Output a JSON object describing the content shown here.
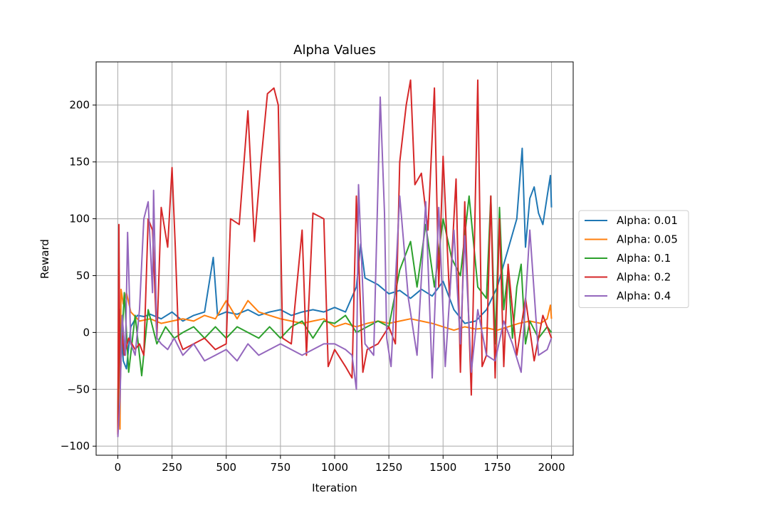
{
  "chart_data": {
    "type": "line",
    "title": "Alpha Values",
    "xlabel": "Iteration",
    "ylabel": "Reward",
    "xlim": [
      -100,
      2100
    ],
    "ylim": [
      -108,
      238
    ],
    "xticks": [
      0,
      250,
      500,
      750,
      1000,
      1250,
      1500,
      1750,
      2000
    ],
    "yticks": [
      -100,
      -50,
      0,
      50,
      100,
      150,
      200
    ],
    "grid": true,
    "legend": "center-right, outside",
    "series": [
      {
        "name": "Alpha: 0.01",
        "color": "#1f77b4",
        "points": [
          [
            0,
            -88
          ],
          [
            5,
            -30
          ],
          [
            12,
            20
          ],
          [
            25,
            -25
          ],
          [
            40,
            -32
          ],
          [
            60,
            5
          ],
          [
            90,
            15
          ],
          [
            120,
            14
          ],
          [
            150,
            16
          ],
          [
            200,
            12
          ],
          [
            250,
            18
          ],
          [
            300,
            10
          ],
          [
            350,
            15
          ],
          [
            400,
            18
          ],
          [
            440,
            66
          ],
          [
            460,
            15
          ],
          [
            500,
            18
          ],
          [
            550,
            16
          ],
          [
            600,
            20
          ],
          [
            650,
            15
          ],
          [
            700,
            18
          ],
          [
            750,
            20
          ],
          [
            800,
            15
          ],
          [
            850,
            18
          ],
          [
            900,
            20
          ],
          [
            950,
            18
          ],
          [
            1000,
            22
          ],
          [
            1050,
            18
          ],
          [
            1100,
            40
          ],
          [
            1120,
            78
          ],
          [
            1140,
            48
          ],
          [
            1200,
            42
          ],
          [
            1250,
            34
          ],
          [
            1300,
            37
          ],
          [
            1350,
            30
          ],
          [
            1400,
            38
          ],
          [
            1450,
            32
          ],
          [
            1500,
            45
          ],
          [
            1550,
            20
          ],
          [
            1600,
            8
          ],
          [
            1650,
            10
          ],
          [
            1700,
            20
          ],
          [
            1750,
            40
          ],
          [
            1780,
            60
          ],
          [
            1810,
            80
          ],
          [
            1840,
            100
          ],
          [
            1865,
            162
          ],
          [
            1880,
            75
          ],
          [
            1900,
            118
          ],
          [
            1920,
            128
          ],
          [
            1940,
            105
          ],
          [
            1960,
            95
          ],
          [
            1980,
            120
          ],
          [
            1995,
            138
          ],
          [
            2000,
            110
          ]
        ]
      },
      {
        "name": "Alpha: 0.05",
        "color": "#ff7f0e",
        "points": [
          [
            0,
            -90
          ],
          [
            4,
            55
          ],
          [
            10,
            -85
          ],
          [
            15,
            38
          ],
          [
            25,
            25
          ],
          [
            40,
            35
          ],
          [
            60,
            18
          ],
          [
            100,
            10
          ],
          [
            150,
            12
          ],
          [
            200,
            8
          ],
          [
            250,
            10
          ],
          [
            300,
            12
          ],
          [
            350,
            10
          ],
          [
            400,
            15
          ],
          [
            450,
            12
          ],
          [
            500,
            28
          ],
          [
            550,
            12
          ],
          [
            600,
            28
          ],
          [
            650,
            18
          ],
          [
            700,
            15
          ],
          [
            750,
            12
          ],
          [
            800,
            10
          ],
          [
            850,
            8
          ],
          [
            900,
            10
          ],
          [
            950,
            12
          ],
          [
            1000,
            5
          ],
          [
            1050,
            8
          ],
          [
            1100,
            5
          ],
          [
            1150,
            8
          ],
          [
            1200,
            10
          ],
          [
            1250,
            8
          ],
          [
            1300,
            10
          ],
          [
            1350,
            12
          ],
          [
            1400,
            10
          ],
          [
            1450,
            8
          ],
          [
            1500,
            5
          ],
          [
            1550,
            2
          ],
          [
            1600,
            5
          ],
          [
            1650,
            3
          ],
          [
            1700,
            4
          ],
          [
            1750,
            2
          ],
          [
            1800,
            5
          ],
          [
            1850,
            8
          ],
          [
            1900,
            10
          ],
          [
            1950,
            8
          ],
          [
            1980,
            12
          ],
          [
            1995,
            24
          ],
          [
            2000,
            12
          ]
        ]
      },
      {
        "name": "Alpha: 0.1",
        "color": "#2ca02c",
        "points": [
          [
            0,
            -85
          ],
          [
            5,
            30
          ],
          [
            15,
            -20
          ],
          [
            30,
            35
          ],
          [
            50,
            -35
          ],
          [
            80,
            15
          ],
          [
            110,
            -38
          ],
          [
            140,
            20
          ],
          [
            180,
            -10
          ],
          [
            220,
            5
          ],
          [
            260,
            -5
          ],
          [
            300,
            0
          ],
          [
            350,
            5
          ],
          [
            400,
            -5
          ],
          [
            450,
            5
          ],
          [
            500,
            -5
          ],
          [
            550,
            5
          ],
          [
            600,
            0
          ],
          [
            650,
            -5
          ],
          [
            700,
            5
          ],
          [
            750,
            -5
          ],
          [
            800,
            5
          ],
          [
            850,
            10
          ],
          [
            900,
            -5
          ],
          [
            950,
            10
          ],
          [
            1000,
            8
          ],
          [
            1050,
            15
          ],
          [
            1100,
            0
          ],
          [
            1150,
            5
          ],
          [
            1200,
            10
          ],
          [
            1250,
            5
          ],
          [
            1300,
            55
          ],
          [
            1350,
            80
          ],
          [
            1380,
            40
          ],
          [
            1420,
            95
          ],
          [
            1460,
            40
          ],
          [
            1500,
            100
          ],
          [
            1540,
            65
          ],
          [
            1580,
            50
          ],
          [
            1620,
            120
          ],
          [
            1660,
            40
          ],
          [
            1700,
            30
          ],
          [
            1720,
            120
          ],
          [
            1740,
            -10
          ],
          [
            1760,
            110
          ],
          [
            1780,
            20
          ],
          [
            1800,
            55
          ],
          [
            1820,
            -5
          ],
          [
            1840,
            40
          ],
          [
            1860,
            60
          ],
          [
            1880,
            -10
          ],
          [
            1900,
            10
          ],
          [
            1940,
            -5
          ],
          [
            1980,
            5
          ],
          [
            2000,
            0
          ]
        ]
      },
      {
        "name": "Alpha: 0.2",
        "color": "#d62728",
        "points": [
          [
            0,
            -90
          ],
          [
            5,
            95
          ],
          [
            10,
            -50
          ],
          [
            20,
            0
          ],
          [
            30,
            -20
          ],
          [
            50,
            -5
          ],
          [
            80,
            -15
          ],
          [
            100,
            -10
          ],
          [
            120,
            -20
          ],
          [
            140,
            100
          ],
          [
            160,
            90
          ],
          [
            180,
            -5
          ],
          [
            200,
            110
          ],
          [
            230,
            75
          ],
          [
            250,
            145
          ],
          [
            265,
            75
          ],
          [
            280,
            -5
          ],
          [
            300,
            -15
          ],
          [
            350,
            -10
          ],
          [
            400,
            -5
          ],
          [
            450,
            -15
          ],
          [
            500,
            -10
          ],
          [
            520,
            100
          ],
          [
            560,
            95
          ],
          [
            600,
            195
          ],
          [
            630,
            80
          ],
          [
            660,
            150
          ],
          [
            690,
            210
          ],
          [
            720,
            215
          ],
          [
            740,
            200
          ],
          [
            760,
            -5
          ],
          [
            800,
            -10
          ],
          [
            850,
            90
          ],
          [
            870,
            -20
          ],
          [
            900,
            105
          ],
          [
            950,
            100
          ],
          [
            970,
            -30
          ],
          [
            1000,
            -15
          ],
          [
            1050,
            -30
          ],
          [
            1080,
            -40
          ],
          [
            1100,
            120
          ],
          [
            1130,
            -35
          ],
          [
            1150,
            -15
          ],
          [
            1200,
            -10
          ],
          [
            1250,
            5
          ],
          [
            1280,
            -10
          ],
          [
            1300,
            150
          ],
          [
            1330,
            200
          ],
          [
            1350,
            222
          ],
          [
            1370,
            130
          ],
          [
            1400,
            140
          ],
          [
            1430,
            90
          ],
          [
            1460,
            215
          ],
          [
            1480,
            40
          ],
          [
            1500,
            155
          ],
          [
            1530,
            30
          ],
          [
            1560,
            135
          ],
          [
            1580,
            -35
          ],
          [
            1600,
            115
          ],
          [
            1630,
            -55
          ],
          [
            1660,
            222
          ],
          [
            1680,
            -30
          ],
          [
            1700,
            -20
          ],
          [
            1720,
            120
          ],
          [
            1740,
            -40
          ],
          [
            1760,
            100
          ],
          [
            1780,
            -30
          ],
          [
            1800,
            60
          ],
          [
            1840,
            -20
          ],
          [
            1880,
            30
          ],
          [
            1920,
            -25
          ],
          [
            1960,
            15
          ],
          [
            2000,
            -5
          ]
        ]
      },
      {
        "name": "Alpha: 0.4",
        "color": "#9467bd",
        "points": [
          [
            0,
            -92
          ],
          [
            10,
            -60
          ],
          [
            20,
            15
          ],
          [
            35,
            -20
          ],
          [
            45,
            88
          ],
          [
            60,
            -10
          ],
          [
            80,
            -20
          ],
          [
            100,
            20
          ],
          [
            120,
            100
          ],
          [
            140,
            115
          ],
          [
            160,
            35
          ],
          [
            165,
            125
          ],
          [
            180,
            -5
          ],
          [
            200,
            -10
          ],
          [
            230,
            -15
          ],
          [
            260,
            -5
          ],
          [
            300,
            -20
          ],
          [
            350,
            -10
          ],
          [
            400,
            -25
          ],
          [
            450,
            -20
          ],
          [
            500,
            -15
          ],
          [
            550,
            -25
          ],
          [
            600,
            -10
          ],
          [
            650,
            -20
          ],
          [
            700,
            -15
          ],
          [
            750,
            -10
          ],
          [
            800,
            -15
          ],
          [
            850,
            -20
          ],
          [
            900,
            -15
          ],
          [
            950,
            -10
          ],
          [
            1000,
            -10
          ],
          [
            1050,
            -15
          ],
          [
            1080,
            -20
          ],
          [
            1100,
            -50
          ],
          [
            1110,
            130
          ],
          [
            1140,
            -10
          ],
          [
            1180,
            -20
          ],
          [
            1210,
            207
          ],
          [
            1230,
            105
          ],
          [
            1240,
            -5
          ],
          [
            1260,
            -30
          ],
          [
            1300,
            120
          ],
          [
            1340,
            30
          ],
          [
            1380,
            -20
          ],
          [
            1420,
            115
          ],
          [
            1450,
            -40
          ],
          [
            1480,
            110
          ],
          [
            1510,
            -30
          ],
          [
            1550,
            90
          ],
          [
            1580,
            -10
          ],
          [
            1600,
            85
          ],
          [
            1630,
            -35
          ],
          [
            1660,
            20
          ],
          [
            1700,
            -20
          ],
          [
            1740,
            -25
          ],
          [
            1780,
            10
          ],
          [
            1820,
            -10
          ],
          [
            1860,
            -35
          ],
          [
            1900,
            90
          ],
          [
            1940,
            -20
          ],
          [
            1980,
            -15
          ],
          [
            2000,
            -5
          ]
        ]
      }
    ]
  }
}
